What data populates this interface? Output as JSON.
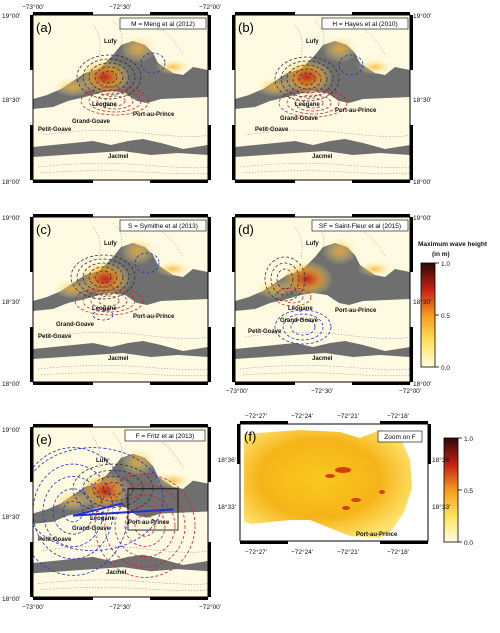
{
  "panels": [
    {
      "letter": "(a)",
      "legend": "M = Meng et al (2012)"
    },
    {
      "letter": "(b)",
      "legend": "H = Hayes et al (2010)"
    },
    {
      "letter": "(c)",
      "legend": "S = Symithe et al (2013)"
    },
    {
      "letter": "(d)",
      "legend": "SF = Saint-Fleur et al (2015)"
    },
    {
      "letter": "(e)",
      "legend": "F = Fritz et al (2013)"
    },
    {
      "letter": "(f)",
      "legend": "Zoom on F"
    }
  ],
  "places": {
    "lufy": "Lufy",
    "leogane": "Leogane",
    "port_au_prince": "Port-au-Prince",
    "grand_goave": "Grand-Goave",
    "petit_goave": "Petit-Goave",
    "jacmel": "Jacmel"
  },
  "axes": {
    "lon_top": [
      "−73°00'",
      "−72°30'",
      "−72°00'"
    ],
    "lat": [
      "19°00'",
      "18°30'",
      "18°00'"
    ],
    "zoom_lon": [
      "−72°27'",
      "−72°24'",
      "−72°21'",
      "−72°18'"
    ],
    "zoom_lat": [
      "18°36'",
      "18°33'"
    ]
  },
  "colorbar_main": {
    "title": "Maximum wave height",
    "unit": "(in m)",
    "ticks": [
      "1.0",
      "0.5",
      "0.0"
    ]
  },
  "colorbar_zoom": {
    "ticks": [
      "1.0",
      "0.5",
      "0.0"
    ]
  },
  "colors": {
    "sea": "#6f6f6f",
    "land": "#fffbe2",
    "deformation_positive": "#d22222",
    "deformation_negative": "#2233cc",
    "deformation_zero": "#333333"
  }
}
